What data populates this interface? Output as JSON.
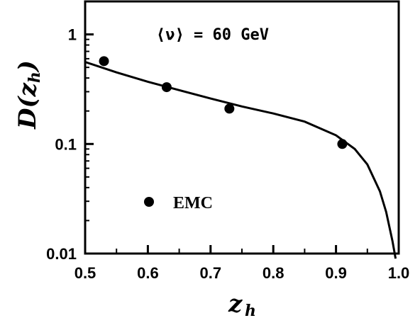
{
  "chart_data": {
    "type": "scatter",
    "xlabel": "z",
    "xlabel_sub": "h",
    "ylabel": "D(z",
    "ylabel_sub": "h",
    "ylabel_close": ")",
    "xlim": [
      0.5,
      1.0
    ],
    "ylim": [
      0.01,
      2.0
    ],
    "yscale": "log",
    "grid": false,
    "x_ticks": [
      0.5,
      0.6,
      0.7,
      0.8,
      0.9,
      1.0
    ],
    "x_tick_labels": [
      "0.5",
      "0.6",
      "0.7",
      "0.8",
      "0.9",
      "1.0"
    ],
    "y_ticks": [
      0.01,
      0.1,
      1
    ],
    "y_tick_labels": [
      "0.01",
      "0.1",
      "1"
    ],
    "annotation": "⟨ν⟩ = 60 GeV",
    "legend": {
      "label": "EMC",
      "placement": "lower-left"
    },
    "series": [
      {
        "name": "EMC",
        "kind": "points",
        "x": [
          0.53,
          0.63,
          0.73,
          0.91
        ],
        "y": [
          0.57,
          0.33,
          0.21,
          0.1
        ]
      },
      {
        "kind": "curve",
        "x": [
          0.5,
          0.55,
          0.6,
          0.65,
          0.7,
          0.75,
          0.8,
          0.85,
          0.9,
          0.93,
          0.95,
          0.97,
          0.98,
          0.99,
          0.995
        ],
        "y": [
          0.56,
          0.45,
          0.37,
          0.31,
          0.26,
          0.22,
          0.19,
          0.16,
          0.12,
          0.09,
          0.065,
          0.037,
          0.024,
          0.013,
          0.009
        ]
      }
    ]
  }
}
